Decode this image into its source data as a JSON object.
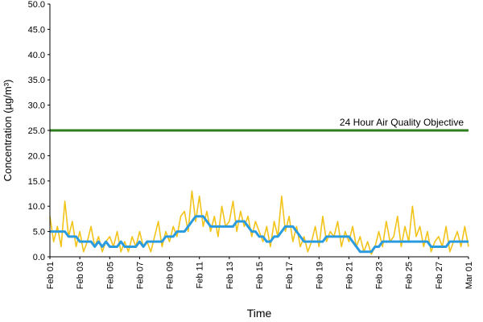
{
  "chart_data": {
    "type": "line",
    "y_label": "Concentration (µg/m³)",
    "x_label": "Time",
    "categories": [
      "Feb 01",
      null,
      null,
      null,
      null,
      null,
      null,
      null,
      "Feb 03",
      null,
      null,
      null,
      null,
      null,
      null,
      null,
      "Feb 05",
      null,
      null,
      null,
      null,
      null,
      null,
      null,
      "Feb 07",
      null,
      null,
      null,
      null,
      null,
      null,
      null,
      "Feb 09",
      null,
      null,
      null,
      null,
      null,
      null,
      null,
      "Feb 11",
      null,
      null,
      null,
      null,
      null,
      null,
      null,
      "Feb 13",
      null,
      null,
      null,
      null,
      null,
      null,
      null,
      "Feb 15",
      null,
      null,
      null,
      null,
      null,
      null,
      null,
      "Feb 17",
      null,
      null,
      null,
      null,
      null,
      null,
      null,
      "Feb 19",
      null,
      null,
      null,
      null,
      null,
      null,
      null,
      "Feb 21",
      null,
      null,
      null,
      null,
      null,
      null,
      null,
      "Feb 23",
      null,
      null,
      null,
      null,
      null,
      null,
      null,
      "Feb 25",
      null,
      null,
      null,
      null,
      null,
      null,
      null,
      "Feb 27",
      null,
      null,
      null,
      null,
      null,
      null,
      null,
      "Mar 01"
    ],
    "series": [
      {
        "color": "#f2c318",
        "values": [
          8,
          3,
          6,
          2,
          11,
          4,
          7,
          2,
          5,
          1,
          3,
          6,
          2,
          4,
          1,
          3,
          4,
          2,
          5,
          1,
          3,
          1,
          4,
          2,
          5,
          2,
          3,
          1,
          4,
          7,
          2,
          5,
          3,
          6,
          4,
          8,
          9,
          5,
          13,
          7,
          12,
          6,
          9,
          5,
          8,
          4,
          10,
          6,
          7,
          11,
          5,
          9,
          6,
          8,
          4,
          7,
          5,
          3,
          6,
          2,
          7,
          4,
          12,
          5,
          8,
          3,
          6,
          2,
          4,
          1,
          3,
          6,
          2,
          8,
          3,
          5,
          4,
          7,
          2,
          5,
          3,
          6,
          2,
          4,
          1,
          3,
          0.5,
          2,
          5,
          2,
          7,
          3,
          4,
          8,
          2,
          6,
          3,
          10,
          4,
          6,
          2,
          5,
          1,
          3,
          4,
          2,
          6,
          1,
          3,
          5,
          2,
          6,
          2
        ]
      },
      {
        "color": "#2b9be0",
        "values": [
          5,
          5,
          5,
          5,
          5,
          4,
          4,
          4,
          3,
          3,
          3,
          3,
          2,
          3,
          2,
          3,
          2,
          2,
          2,
          3,
          2,
          2,
          2,
          2,
          3,
          2,
          3,
          3,
          3,
          3,
          3,
          4,
          4,
          4,
          5,
          5,
          5,
          6,
          7,
          8,
          8,
          8,
          7,
          6,
          6,
          6,
          6,
          6,
          6,
          6,
          7,
          7,
          7,
          6,
          5,
          5,
          4,
          4,
          3,
          3,
          4,
          4,
          5,
          6,
          6,
          6,
          5,
          4,
          3,
          3,
          3,
          3,
          3,
          3,
          4,
          4,
          4,
          4,
          4,
          4,
          4,
          3,
          2,
          1,
          1,
          1,
          1,
          2,
          2,
          3,
          3,
          3,
          3,
          3,
          3,
          3,
          3,
          3,
          3,
          3,
          3,
          3,
          2,
          2,
          2,
          2,
          2,
          3,
          3,
          3,
          3,
          3,
          3
        ]
      }
    ],
    "annotations": [
      {
        "text": "24 Hour Air Quality Objective",
        "value": 25,
        "color": "#2e7d1e"
      }
    ],
    "ylim": [
      0,
      50
    ],
    "yticks": [
      {
        "value": 0,
        "label": "0.0"
      },
      {
        "value": 5,
        "label": "5.0"
      },
      {
        "value": 10,
        "label": "10.0"
      },
      {
        "value": 15,
        "label": "15.0"
      },
      {
        "value": 20,
        "label": "20.0"
      },
      {
        "value": 25,
        "label": "25.0"
      },
      {
        "value": 30,
        "label": "30.0"
      },
      {
        "value": 35,
        "label": "35.0"
      },
      {
        "value": 40,
        "label": "40.0"
      },
      {
        "value": 45,
        "label": "45.0"
      },
      {
        "value": 50,
        "label": "50.0"
      }
    ]
  }
}
